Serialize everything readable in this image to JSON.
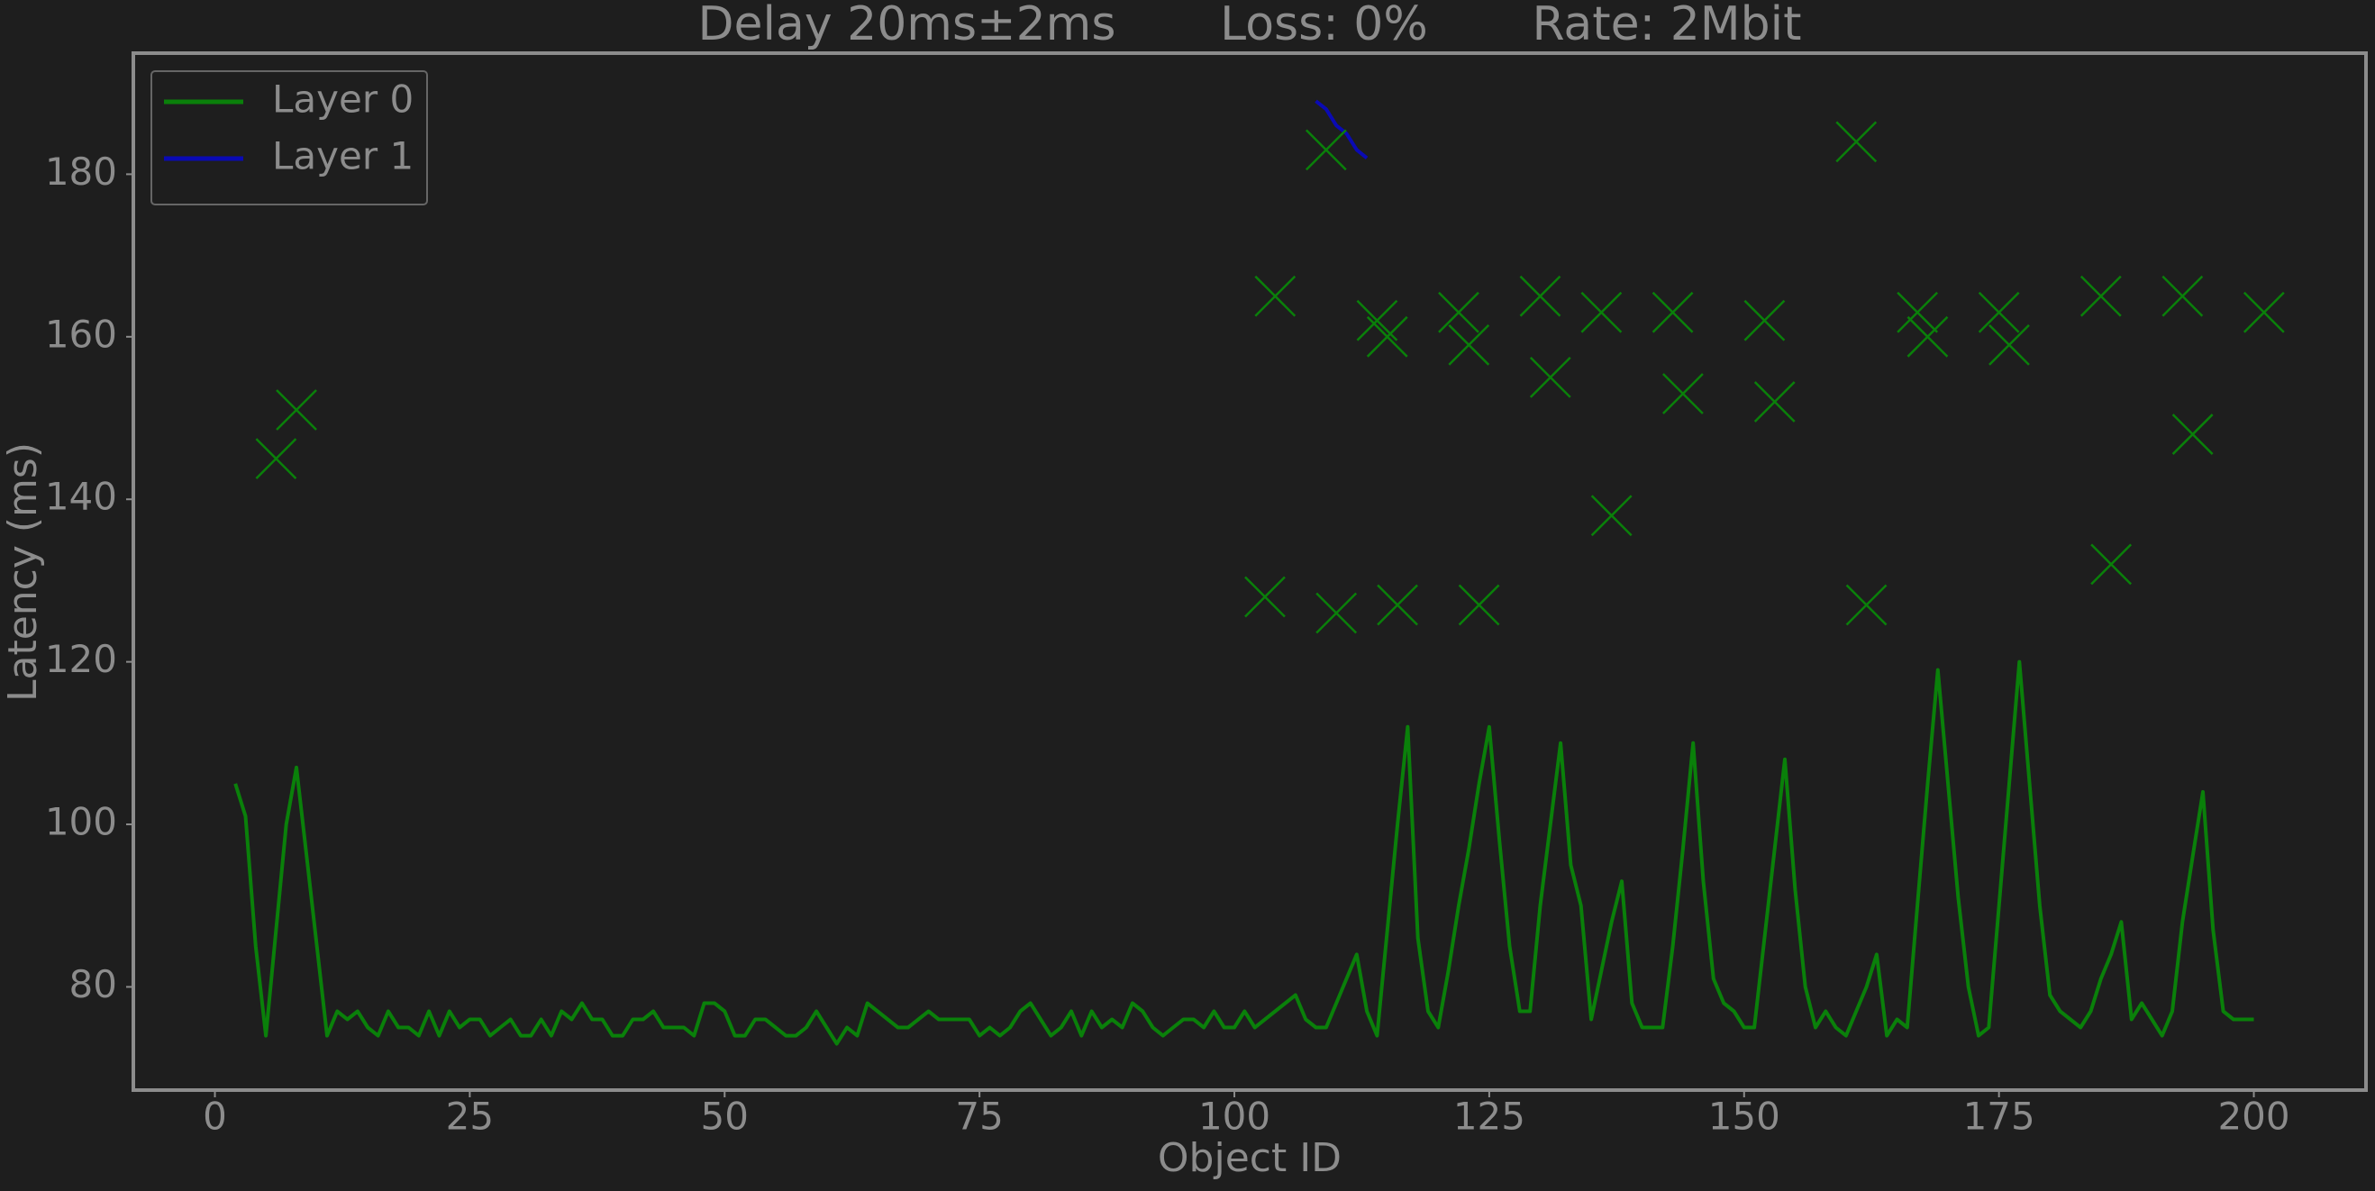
{
  "chart_data": {
    "type": "line",
    "title": "Delay 20ms±2ms       Loss: 0%       Rate: 2Mbit",
    "x_label": "Object ID",
    "y_label": "Latency (ms)",
    "xlim": [
      -8,
      211
    ],
    "ylim": [
      67.3,
      194.9
    ],
    "xticks": [
      0,
      25,
      50,
      75,
      100,
      125,
      150,
      175,
      200
    ],
    "yticks": [
      80,
      100,
      120,
      140,
      160,
      180
    ],
    "grid": false,
    "legend": "upper left",
    "series": [
      {
        "name": "Layer 0",
        "color": "#0a800a",
        "x": [
          2,
          3,
          4,
          5,
          6,
          7,
          8,
          9,
          10,
          11,
          12,
          13,
          14,
          15,
          16,
          17,
          18,
          19,
          20,
          21,
          22,
          23,
          24,
          25,
          26,
          27,
          28,
          29,
          30,
          31,
          32,
          33,
          34,
          35,
          36,
          37,
          38,
          39,
          40,
          41,
          42,
          43,
          44,
          45,
          46,
          47,
          48,
          49,
          50,
          51,
          52,
          53,
          54,
          55,
          56,
          57,
          58,
          59,
          60,
          61,
          62,
          63,
          64,
          65,
          66,
          67,
          68,
          69,
          70,
          71,
          72,
          73,
          74,
          75,
          76,
          77,
          78,
          79,
          80,
          81,
          82,
          83,
          84,
          85,
          86,
          87,
          88,
          89,
          90,
          91,
          92,
          93,
          94,
          95,
          96,
          97,
          98,
          99,
          100,
          101,
          102,
          103,
          104,
          105,
          106,
          107,
          108,
          109,
          110,
          111,
          112,
          113,
          114,
          115,
          116,
          117,
          118,
          119,
          120,
          121,
          122,
          123,
          124,
          125,
          126,
          127,
          128,
          129,
          130,
          131,
          132,
          133,
          134,
          135,
          136,
          137,
          138,
          139,
          140,
          141,
          142,
          143,
          144,
          145,
          146,
          147,
          148,
          149,
          150,
          151,
          152,
          153,
          154,
          155,
          156,
          157,
          158,
          159,
          160,
          161,
          162,
          163,
          164,
          165,
          166,
          167,
          168,
          169,
          170,
          171,
          172,
          173,
          174,
          175,
          176,
          177,
          178,
          179,
          180,
          181,
          182,
          183,
          184,
          185,
          186,
          187,
          188,
          189,
          190,
          191,
          192,
          193,
          194,
          195,
          196,
          197,
          198,
          199,
          200
        ],
        "values": [
          105,
          101,
          85,
          74,
          87,
          100,
          107,
          96,
          85,
          74,
          77,
          76,
          77,
          75,
          74,
          77,
          75,
          75,
          74,
          77,
          74,
          77,
          75,
          76,
          76,
          74,
          75,
          76,
          74,
          74,
          76,
          74,
          77,
          76,
          78,
          76,
          76,
          74,
          74,
          76,
          76,
          77,
          75,
          75,
          75,
          74,
          78,
          78,
          77,
          74,
          74,
          76,
          76,
          75,
          74,
          74,
          75,
          77,
          75,
          73,
          75,
          74,
          78,
          77,
          76,
          75,
          75,
          76,
          77,
          76,
          76,
          76,
          76,
          74,
          75,
          74,
          75,
          77,
          78,
          76,
          74,
          75,
          77,
          74,
          77,
          75,
          76,
          75,
          78,
          77,
          75,
          74,
          75,
          76,
          76,
          75,
          77,
          75,
          75,
          77,
          75,
          76,
          77,
          78,
          79,
          76,
          75,
          75,
          78,
          81,
          84,
          77,
          74,
          87,
          100,
          112,
          86,
          77,
          75,
          82,
          90,
          97,
          105,
          112,
          98,
          85,
          77,
          77,
          90,
          100,
          110,
          95,
          90,
          76,
          82,
          88,
          93,
          78,
          75,
          75,
          75,
          85,
          97,
          110,
          93,
          81,
          78,
          77,
          75,
          75,
          86,
          97,
          108,
          92,
          80,
          75,
          77,
          75,
          74,
          77,
          80,
          84,
          74,
          76,
          75,
          90,
          105,
          119,
          105,
          91,
          80,
          74,
          75,
          90,
          105,
          120,
          105,
          90,
          79,
          77,
          76,
          75,
          77,
          81,
          84,
          88,
          76,
          78,
          76,
          74,
          77,
          88,
          96,
          104,
          87,
          77,
          76,
          76,
          76
        ]
      },
      {
        "name": "Layer 1",
        "color": "#0a0ab4",
        "x": [
          108,
          109,
          110,
          111,
          112,
          113
        ],
        "values": [
          189,
          188,
          186,
          185,
          183,
          182
        ]
      }
    ],
    "markers": {
      "color": "#0a800a",
      "x": [
        6,
        8,
        103,
        104,
        109,
        110,
        114,
        115,
        116,
        122,
        123,
        124,
        130,
        131,
        136,
        137,
        143,
        144,
        152,
        153,
        161,
        162,
        167,
        168,
        175,
        176,
        185,
        186,
        193,
        194,
        201
      ],
      "values": [
        145,
        151,
        128,
        165,
        183,
        126,
        162,
        160,
        127,
        163,
        159,
        127,
        165,
        155,
        163,
        138,
        163,
        153,
        162,
        152,
        184,
        127,
        163,
        160,
        163,
        159,
        165,
        132,
        165,
        148,
        163
      ]
    }
  }
}
